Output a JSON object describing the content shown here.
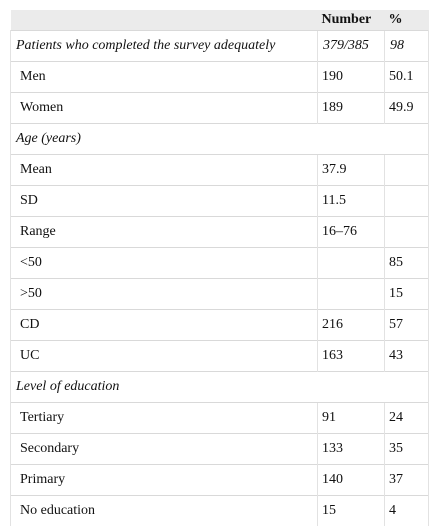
{
  "table": {
    "headers": [
      "",
      "Number",
      "%"
    ],
    "rows": [
      {
        "type": "section",
        "label": "Patients who completed the survey adequately",
        "number": "379/385",
        "percent": "98"
      },
      {
        "type": "item",
        "label": "Men",
        "number": "190",
        "percent": "50.1"
      },
      {
        "type": "item",
        "label": "Women",
        "number": "189",
        "percent": "49.9"
      },
      {
        "type": "section",
        "label": "Age (years)",
        "number": "",
        "percent": ""
      },
      {
        "type": "item",
        "label": "Mean",
        "number": "37.9",
        "percent": ""
      },
      {
        "type": "item",
        "label": "SD",
        "number": "11.5",
        "percent": ""
      },
      {
        "type": "item",
        "label": "Range",
        "number": "16–76",
        "percent": ""
      },
      {
        "type": "item",
        "label": "<50",
        "number": "",
        "percent": "85"
      },
      {
        "type": "item",
        "label": ">50",
        "number": "",
        "percent": "15"
      },
      {
        "type": "item",
        "label": "CD",
        "number": "216",
        "percent": "57"
      },
      {
        "type": "item",
        "label": "UC",
        "number": "163",
        "percent": "43"
      },
      {
        "type": "section",
        "label": "Level of education",
        "number": "",
        "percent": ""
      },
      {
        "type": "item",
        "label": "Tertiary",
        "number": "91",
        "percent": "24"
      },
      {
        "type": "item",
        "label": "Secondary",
        "number": "133",
        "percent": "35"
      },
      {
        "type": "item",
        "label": "Primary",
        "number": "140",
        "percent": "37"
      },
      {
        "type": "item",
        "label": "No education",
        "number": "15",
        "percent": "4"
      }
    ]
  }
}
